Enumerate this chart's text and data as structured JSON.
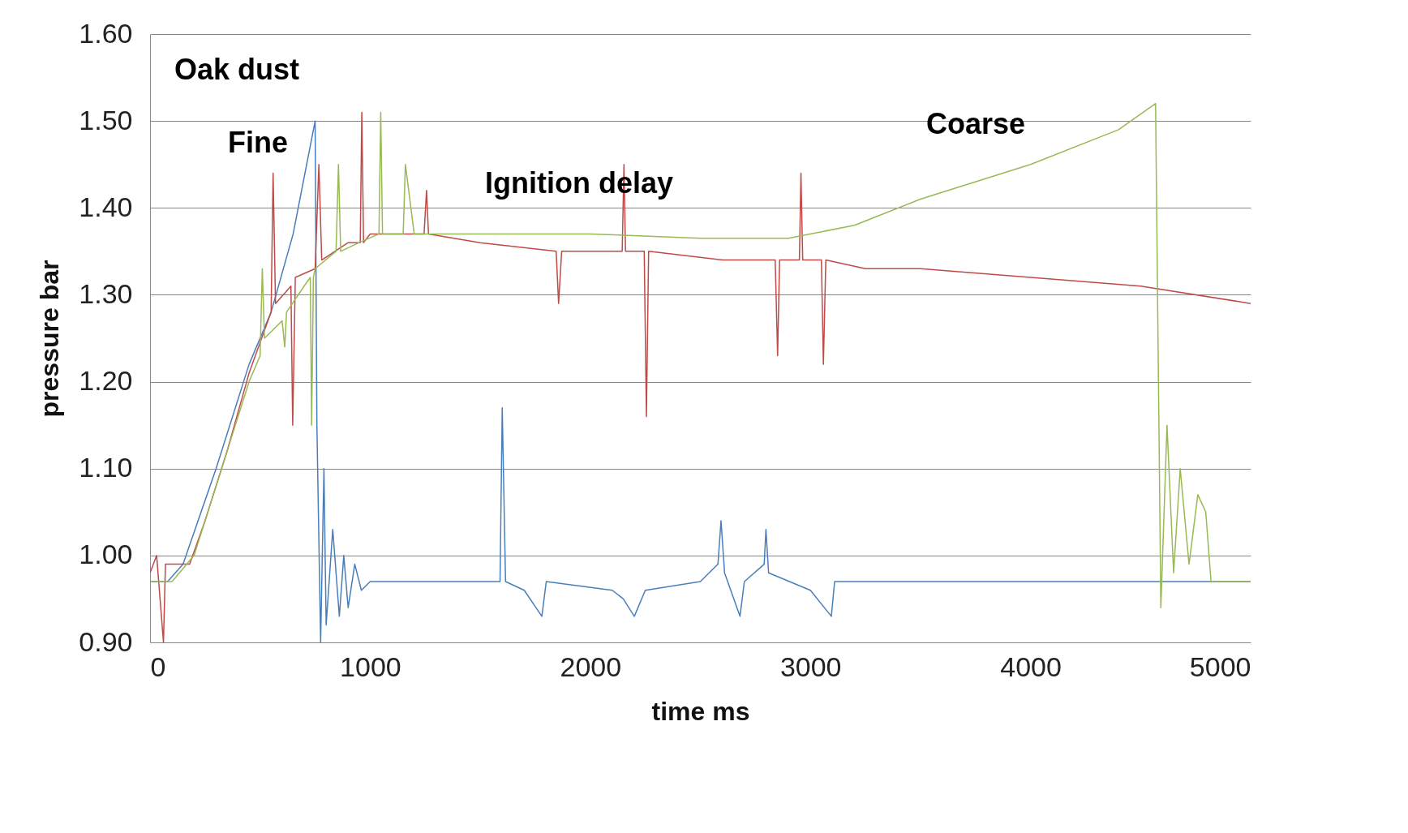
{
  "chart_data": {
    "type": "line",
    "xlabel": "time ms",
    "ylabel": "pressure bar",
    "xlim": [
      0,
      5000
    ],
    "xticks": [
      0,
      1000,
      2000,
      3000,
      4000,
      5000
    ],
    "ylim": [
      0.9,
      1.6
    ],
    "yticks": [
      {
        "value": 0.9,
        "label": "0.90"
      },
      {
        "value": 1.0,
        "label": "1.00"
      },
      {
        "value": 1.1,
        "label": "1.10"
      },
      {
        "value": 1.2,
        "label": "1.20"
      },
      {
        "value": 1.3,
        "label": "1.30"
      },
      {
        "value": 1.4,
        "label": "1.40"
      },
      {
        "value": 1.5,
        "label": "1.50"
      },
      {
        "value": 1.6,
        "label": "1.60"
      }
    ],
    "grid": "y",
    "legend": false,
    "marker": "none",
    "line_style": "solid",
    "annotations": [
      "Oak dust",
      "Fine",
      "Ignition delay",
      "Coarse"
    ],
    "series": [
      {
        "color": "#4a7ebb",
        "x": [
          0,
          80,
          150,
          300,
          450,
          550,
          650,
          750,
          758,
          775,
          790,
          800,
          830,
          860,
          880,
          900,
          930,
          960,
          1000,
          1200,
          1500,
          1590,
          1600,
          1615,
          1700,
          1780,
          1800,
          2100,
          2150,
          2200,
          2250,
          2500,
          2580,
          2594,
          2610,
          2680,
          2700,
          2790,
          2798,
          2810,
          3000,
          3095,
          3110,
          4000,
          5000
        ],
        "values": [
          0.97,
          0.97,
          0.99,
          1.1,
          1.22,
          1.28,
          1.37,
          1.5,
          1.15,
          0.9,
          1.1,
          0.92,
          1.03,
          0.93,
          1.0,
          0.94,
          0.99,
          0.96,
          0.97,
          0.97,
          0.97,
          0.97,
          1.17,
          0.97,
          0.96,
          0.93,
          0.97,
          0.96,
          0.95,
          0.93,
          0.96,
          0.97,
          0.99,
          1.04,
          0.98,
          0.93,
          0.97,
          0.99,
          1.03,
          0.98,
          0.96,
          0.93,
          0.97,
          0.97,
          0.97
        ]
      },
      {
        "color": "#be4b48",
        "x": [
          0,
          30,
          61,
          70,
          100,
          180,
          250,
          350,
          450,
          550,
          559,
          570,
          640,
          648,
          660,
          750,
          767,
          780,
          900,
          955,
          962,
          970,
          1000,
          1100,
          1245,
          1256,
          1265,
          1500,
          1845,
          1856,
          1870,
          2000,
          2145,
          2153,
          2160,
          2245,
          2255,
          2265,
          2600,
          2840,
          2851,
          2860,
          2950,
          2957,
          2965,
          3050,
          3059,
          3070,
          3250,
          3500,
          4000,
          4500,
          5000
        ],
        "values": [
          0.98,
          1.0,
          0.9,
          0.99,
          0.99,
          0.99,
          1.04,
          1.12,
          1.21,
          1.28,
          1.44,
          1.29,
          1.31,
          1.15,
          1.32,
          1.33,
          1.45,
          1.34,
          1.36,
          1.36,
          1.51,
          1.36,
          1.37,
          1.37,
          1.37,
          1.42,
          1.37,
          1.36,
          1.35,
          1.29,
          1.35,
          1.35,
          1.35,
          1.45,
          1.35,
          1.35,
          1.16,
          1.35,
          1.34,
          1.34,
          1.23,
          1.34,
          1.34,
          1.44,
          1.34,
          1.34,
          1.22,
          1.34,
          1.33,
          1.33,
          1.32,
          1.31,
          1.29
        ]
      },
      {
        "color": "#98b954",
        "x": [
          0,
          100,
          200,
          350,
          450,
          500,
          510,
          520,
          600,
          612,
          620,
          700,
          728,
          734,
          742,
          750,
          845,
          856,
          866,
          950,
          1040,
          1048,
          1056,
          1140,
          1150,
          1160,
          1200,
          2000,
          2500,
          2900,
          3200,
          3500,
          4000,
          4400,
          4568,
          4592,
          4620,
          4650,
          4680,
          4720,
          4760,
          4796,
          4820,
          5000
        ],
        "values": [
          0.97,
          0.97,
          1.0,
          1.12,
          1.2,
          1.23,
          1.33,
          1.25,
          1.27,
          1.24,
          1.28,
          1.31,
          1.32,
          1.15,
          1.32,
          1.33,
          1.35,
          1.45,
          1.35,
          1.36,
          1.37,
          1.51,
          1.37,
          1.37,
          1.37,
          1.45,
          1.37,
          1.37,
          1.365,
          1.365,
          1.38,
          1.41,
          1.45,
          1.49,
          1.52,
          0.94,
          1.15,
          0.98,
          1.1,
          0.99,
          1.07,
          1.05,
          0.97,
          0.97
        ]
      }
    ]
  }
}
